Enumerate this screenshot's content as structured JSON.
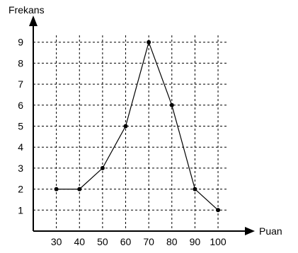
{
  "chart_data": {
    "type": "line",
    "x_axis_label": "Puan",
    "y_axis_label": "Frekans",
    "x_ticks": [
      30,
      40,
      50,
      60,
      70,
      80,
      90,
      100
    ],
    "y_ticks": [
      1,
      2,
      3,
      4,
      5,
      6,
      7,
      8,
      9
    ],
    "xlim": [
      20,
      100
    ],
    "ylim": [
      0,
      9
    ],
    "grid": true,
    "grid_style": "dashed",
    "series": [
      {
        "x": [
          30,
          40,
          50,
          60,
          70,
          80,
          90,
          100
        ],
        "y": [
          2,
          2,
          3,
          5,
          9,
          6,
          2,
          1
        ]
      }
    ],
    "colors": {
      "line": "#000000",
      "grid": "#000000",
      "axis": "#000000"
    }
  }
}
